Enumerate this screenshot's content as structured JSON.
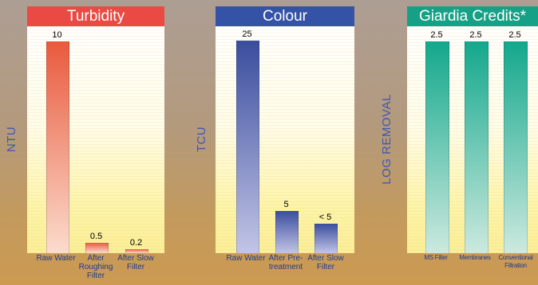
{
  "chart_data": [
    {
      "type": "bar",
      "title": "Turbidity",
      "ylabel": "NTU",
      "categories": [
        "Raw Water",
        "After Roughing Filter",
        "After Slow Filter"
      ],
      "values": [
        10,
        0.5,
        0.2
      ],
      "value_labels": [
        "10",
        "0.5",
        "0.2"
      ],
      "ylim": [
        0,
        10.7
      ],
      "colors": {
        "title_bg": "#ea4a43",
        "bar_top": "#e95a3d",
        "bar_bottom": "#fbdccd"
      }
    },
    {
      "type": "bar",
      "title": "Colour",
      "ylabel": "TCU",
      "categories": [
        "Raw Water",
        "After Pre-treatment",
        "After Slow Filter"
      ],
      "values": [
        25,
        5,
        3.5
      ],
      "value_labels": [
        "25",
        "5",
        "< 5"
      ],
      "ylim": [
        0,
        26.7
      ],
      "colors": {
        "title_bg": "#3553a6",
        "bar_top": "#3a4d9e",
        "bar_bottom": "#c2c5e6"
      }
    },
    {
      "type": "bar",
      "title": "Giardia Credits*",
      "ylabel": "LOG REMOVAL",
      "categories": [
        "MS Filter",
        "Membranes",
        "Conventional Filtration"
      ],
      "values": [
        2.5,
        2.5,
        2.5
      ],
      "value_labels": [
        "2.5",
        "2.5",
        "2.5"
      ],
      "ylim": [
        0,
        2.68
      ],
      "colors": {
        "title_bg": "#16a186",
        "bar_top": "#13a88c",
        "bar_bottom": "#cce9df"
      }
    }
  ]
}
